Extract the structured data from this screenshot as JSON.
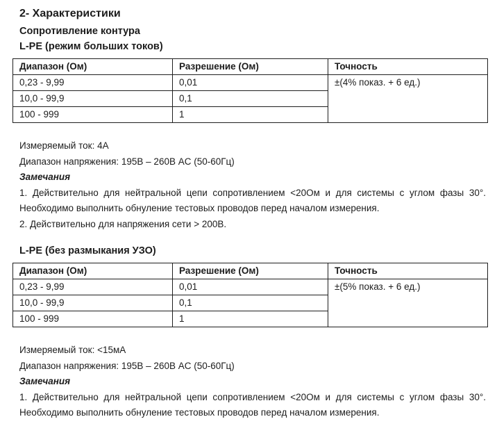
{
  "document": {
    "title": "2- Характеристики",
    "subtitle": "Сопротивление контура"
  },
  "sections": [
    {
      "heading": "L-PE (режим больших токов)",
      "table": {
        "col_headers": [
          "Диапазон (Ом)",
          "Разрешение (Ом)",
          "Точность"
        ],
        "rows": [
          {
            "range": "0,23 - 9,99",
            "resolution": "0,01"
          },
          {
            "range": "10,0 - 99,9",
            "resolution": "0,1"
          },
          {
            "range": "100 - 999",
            "resolution": "1"
          }
        ],
        "accuracy": "±(4% показ. + 6 ед.)"
      },
      "measured_current": "Измеряемый ток: 4А",
      "voltage_range": "Диапазон напряжения: 195В – 260В AC (50-60Гц)",
      "notes_label": "Замечания",
      "note_lines": [
        "1. Действительно для нейтральной цепи сопротивлением <20Ом и для системы с углом фазы 30°.",
        "Необходимо выполнить обнуление тестовых проводов перед началом измерения.",
        "2. Действительно для напряжения сети > 200В."
      ]
    },
    {
      "heading": "L-PE (без размыкания УЗО)",
      "table": {
        "col_headers": [
          "Диапазон (Ом)",
          "Разрешение (Ом)",
          "Точность"
        ],
        "rows": [
          {
            "range": "0,23 - 9,99",
            "resolution": "0,01"
          },
          {
            "range": "10,0 - 99,9",
            "resolution": "0,1"
          },
          {
            "range": "100 - 999",
            "resolution": "1"
          }
        ],
        "accuracy": "±(5% показ. + 6 ед.)"
      },
      "measured_current": "Измеряемый ток: <15мА",
      "voltage_range": "Диапазон напряжения: 195В – 260В AC (50-60Гц)",
      "notes_label": "Замечания",
      "note_lines": [
        "1. Действительно для нейтральной цепи сопротивлением <20Ом и для системы с углом фазы 30°.",
        "Необходимо выполнить обнуление тестовых проводов перед началом измерения."
      ]
    }
  ]
}
